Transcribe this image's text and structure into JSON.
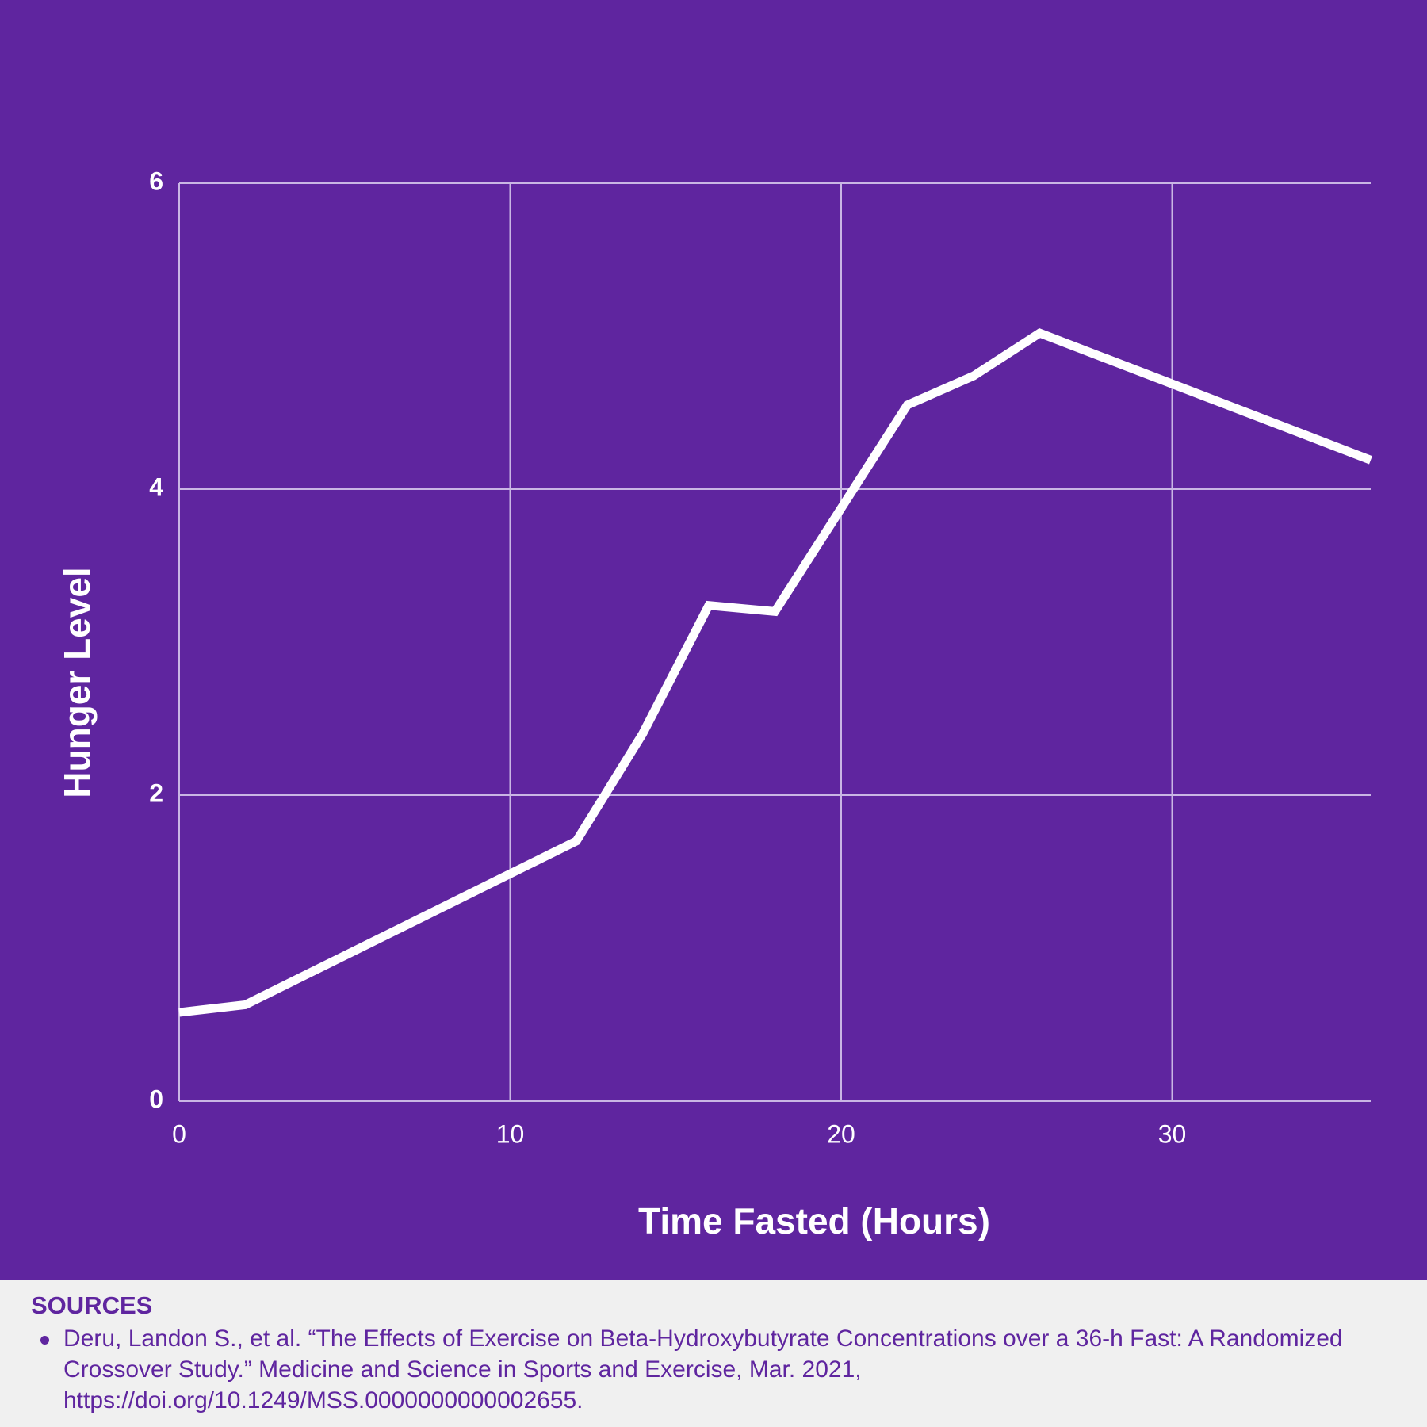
{
  "chart_data": {
    "type": "line",
    "x_label": "Time Fasted (Hours)",
    "y_label": "Hunger Level",
    "x": [
      0,
      2,
      12,
      14,
      16,
      18,
      22,
      24,
      26,
      36
    ],
    "series": [
      {
        "color": "#ffffff",
        "values": [
          0.58,
          0.63,
          1.7,
          2.4,
          3.24,
          3.2,
          4.55,
          4.74,
          5.02,
          4.19
        ]
      }
    ],
    "xlim": [
      0,
      36
    ],
    "xticks": [
      0,
      10,
      20,
      30
    ],
    "ylim": [
      0,
      6
    ],
    "yticks": [
      0,
      2,
      4,
      6
    ],
    "grid": true
  },
  "sources": {
    "heading": "SOURCES",
    "items": [
      "Deru, Landon S., et al. “The Effects of Exercise on Beta-Hydroxybutyrate Concentrations over a 36-h Fast: A Randomized Crossover Study.” Medicine and Science in Sports and Exercise, Mar. 2021, https://doi.org/10.1249/MSS.0000000000002655."
    ]
  }
}
